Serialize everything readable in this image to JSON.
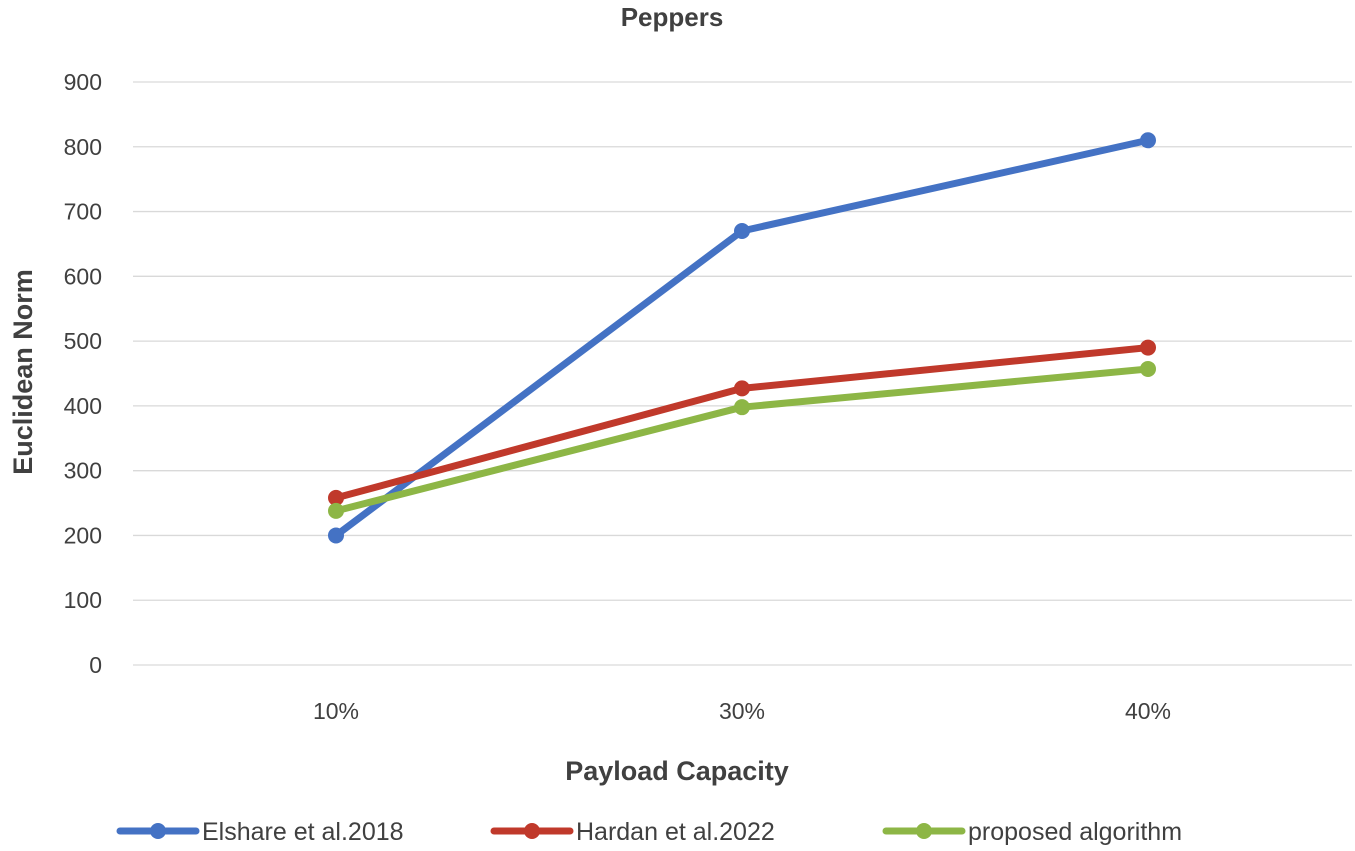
{
  "chart_data": {
    "type": "line",
    "title": "Peppers",
    "xlabel": "Payload Capacity",
    "ylabel": "Euclidean Norm",
    "categories": [
      "10%",
      "30%",
      "40%"
    ],
    "ylim": [
      0,
      900
    ],
    "yticks": [
      0,
      100,
      200,
      300,
      400,
      500,
      600,
      700,
      800,
      900
    ],
    "grid": true,
    "legend_position": "bottom",
    "series": [
      {
        "name": "Elshare et al.2018",
        "color": "#4472C4",
        "values": [
          200,
          670,
          810
        ]
      },
      {
        "name": "Hardan et al.2022",
        "color": "#C0392B",
        "values": [
          258,
          427,
          490
        ]
      },
      {
        "name": "proposed algorithm",
        "color": "#8DB646",
        "values": [
          238,
          398,
          457
        ]
      }
    ]
  }
}
